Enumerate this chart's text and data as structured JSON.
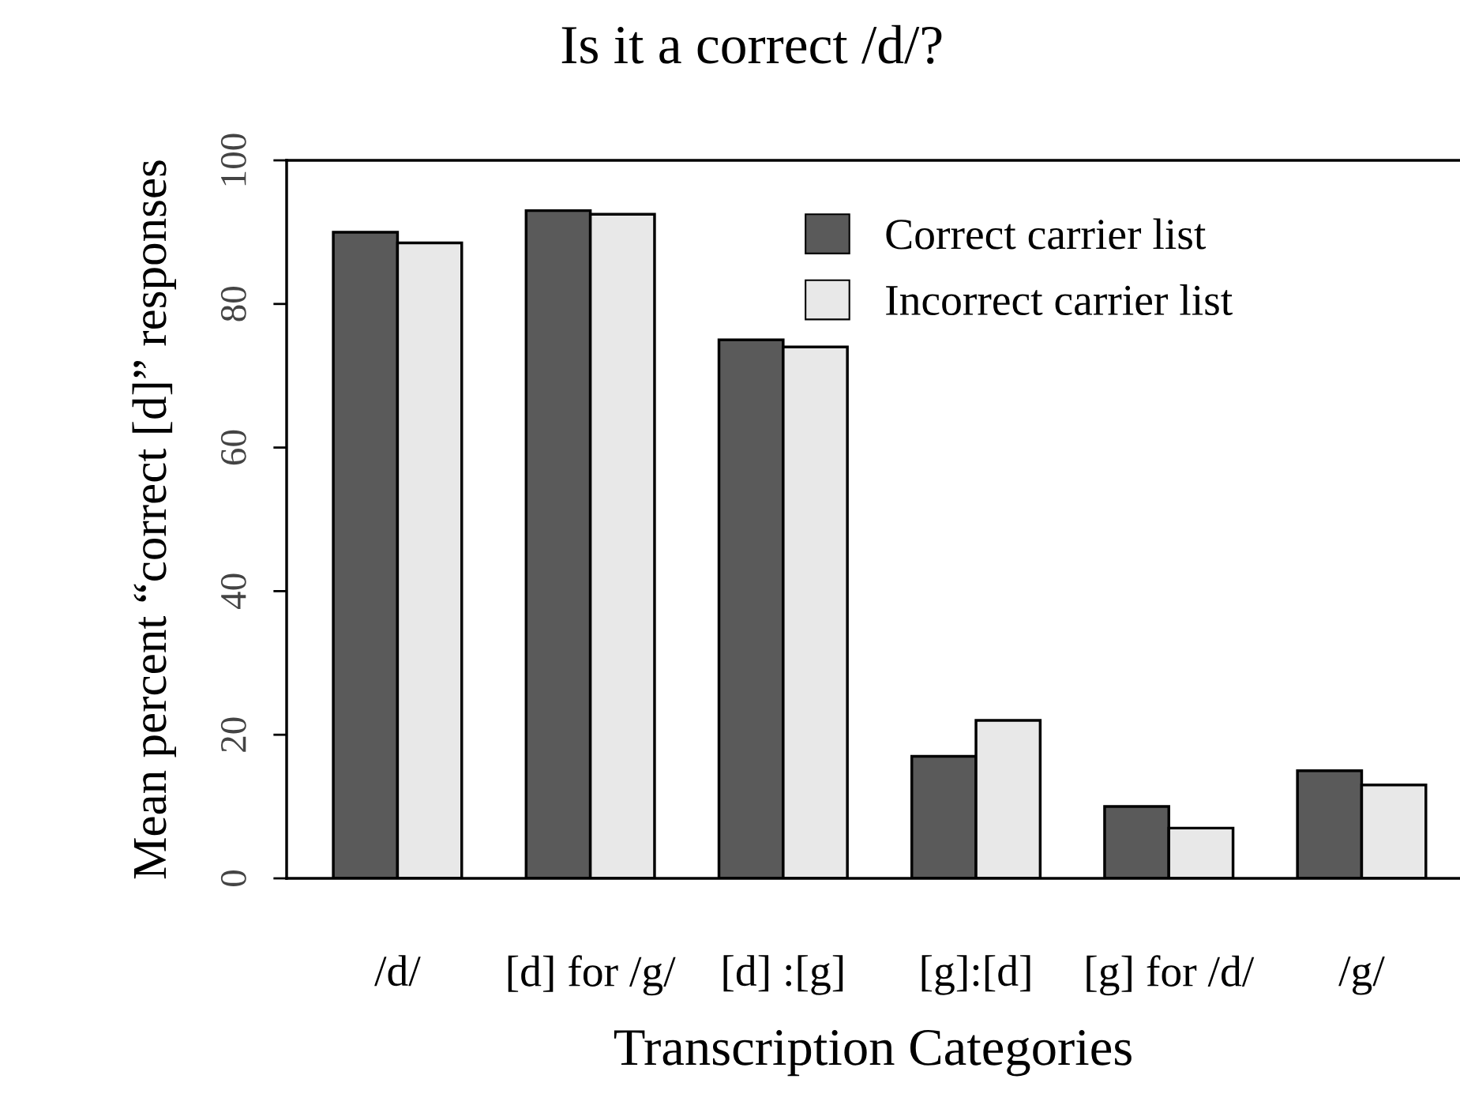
{
  "chart_data": {
    "type": "bar",
    "title": "Is it a correct /d/?",
    "xlabel": "Transcription Categories",
    "ylabel": "Mean percent “correct [d]” responses",
    "categories": [
      "/d/",
      "[d] for /g/",
      "[d] :[g]",
      "[g]:[d]",
      "[g] for /d/",
      "/g/"
    ],
    "series": [
      {
        "name": "Correct carrier list",
        "color": "#5a5a5a",
        "values": [
          90,
          93,
          75,
          17,
          10,
          15
        ]
      },
      {
        "name": "Incorrect carrier list",
        "color": "#e8e8e8",
        "values": [
          88.5,
          92.5,
          74,
          22,
          7,
          13
        ]
      }
    ],
    "ylim": [
      0,
      100
    ],
    "yticks": [
      0,
      20,
      40,
      60,
      80,
      100
    ],
    "grid": false,
    "legend": "top right"
  }
}
